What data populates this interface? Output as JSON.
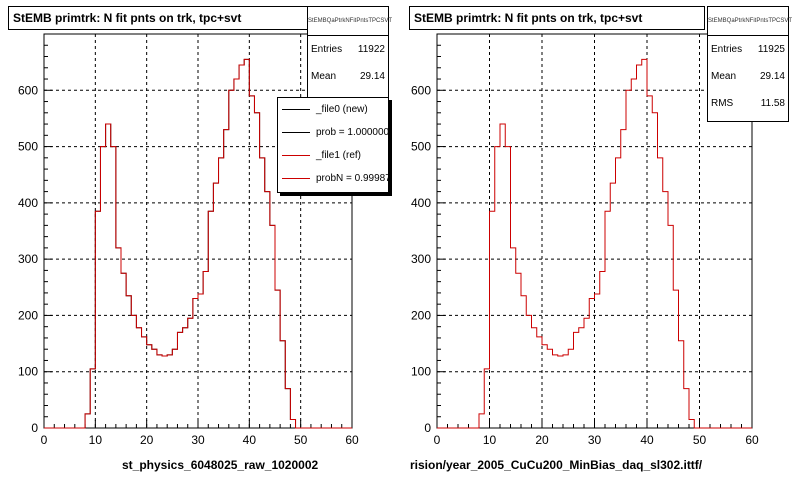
{
  "colors": {
    "new": "#000000",
    "ref": "#cc0000",
    "grid": "#000000"
  },
  "footer": "",
  "chart_data": [
    {
      "type": "bar",
      "title": "StEMB primtrk: N fit pnts on trk, tpc+svt",
      "xlabel": "st_physics_6048025_raw_1020002",
      "xlim": [
        0,
        60
      ],
      "ylim": [
        0,
        700
      ],
      "xticks": [
        0,
        10,
        20,
        30,
        40,
        50,
        60
      ],
      "yticks": [
        0,
        100,
        200,
        300,
        400,
        500,
        600
      ],
      "bin_width": 1,
      "grid": true,
      "stats": {
        "name": "StEMBQaPtrkNFitPntsTPCSVT",
        "entries_label": "Entries",
        "entries": "11922",
        "mean_label": "Mean",
        "mean": "29.14"
      },
      "legend": {
        "placement": "top-right",
        "entries": [
          {
            "label": "_file0 (new)",
            "color": "#000000"
          },
          {
            "label": "prob = 1.000000",
            "color": "#000000"
          },
          {
            "label": "_file1 (ref)",
            "color": "#cc0000"
          },
          {
            "label": "probN = 0.999875",
            "color": "#cc0000"
          }
        ]
      },
      "series": [
        {
          "name": "_file0 (new)",
          "values": [
            0,
            0,
            0,
            0,
            0,
            0,
            0,
            0,
            25,
            105,
            385,
            500,
            540,
            500,
            320,
            275,
            235,
            200,
            178,
            162,
            148,
            140,
            130,
            128,
            130,
            140,
            170,
            178,
            195,
            230,
            238,
            278,
            385,
            435,
            480,
            530,
            600,
            620,
            645,
            655,
            590,
            560,
            480,
            420,
            360,
            245,
            155,
            70,
            15,
            0,
            0,
            0,
            0,
            0,
            0,
            0,
            0,
            0,
            0,
            0
          ]
        },
        {
          "name": "_file1 (ref)",
          "values": [
            0,
            0,
            0,
            0,
            0,
            0,
            0,
            0,
            25,
            105,
            385,
            500,
            540,
            500,
            320,
            275,
            235,
            200,
            178,
            162,
            148,
            140,
            130,
            128,
            130,
            140,
            170,
            178,
            195,
            230,
            238,
            278,
            385,
            435,
            480,
            530,
            600,
            620,
            645,
            655,
            590,
            560,
            480,
            420,
            360,
            245,
            155,
            70,
            15,
            0,
            0,
            0,
            0,
            0,
            0,
            0,
            0,
            0,
            0,
            0
          ]
        }
      ]
    },
    {
      "type": "bar",
      "title": "StEMB primtrk: N fit pnts on trk, tpc+svt",
      "xlabel": "rision/year_2005_CuCu200_MinBias_daq_sl302.ittf/",
      "xlim": [
        0,
        60
      ],
      "ylim": [
        0,
        700
      ],
      "xticks": [
        0,
        10,
        20,
        30,
        40,
        50,
        60
      ],
      "yticks": [
        0,
        100,
        200,
        300,
        400,
        500,
        600
      ],
      "bin_width": 1,
      "grid": true,
      "stats": {
        "name": "StEMBQaPtrkNFitPntsTPCSVT",
        "entries_label": "Entries",
        "entries": "11925",
        "mean_label": "Mean",
        "mean": "29.14",
        "rms_label": "RMS",
        "rms": "11.58"
      },
      "series": [
        {
          "name": "",
          "values": [
            0,
            0,
            0,
            0,
            0,
            0,
            0,
            0,
            25,
            105,
            385,
            500,
            540,
            500,
            320,
            275,
            235,
            200,
            178,
            162,
            148,
            140,
            130,
            128,
            130,
            140,
            170,
            178,
            195,
            230,
            238,
            278,
            385,
            435,
            480,
            530,
            600,
            620,
            645,
            655,
            590,
            560,
            480,
            420,
            360,
            245,
            155,
            70,
            15,
            0,
            0,
            0,
            0,
            0,
            0,
            0,
            0,
            0,
            0,
            0
          ]
        }
      ]
    }
  ]
}
